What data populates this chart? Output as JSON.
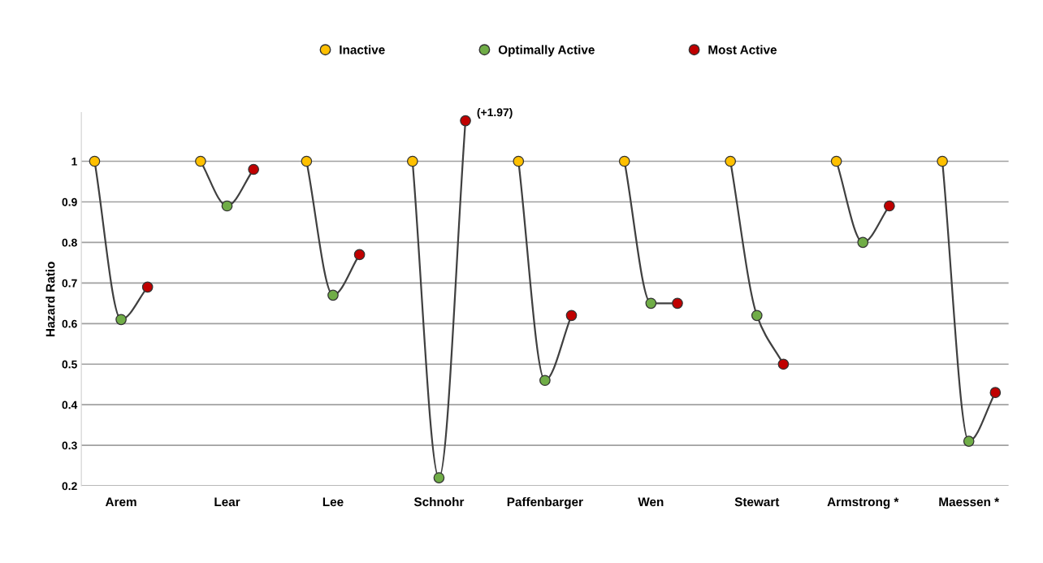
{
  "chart_data": {
    "type": "line",
    "ylabel": "Hazard Ratio",
    "categories": [
      null,
      "Arem",
      null,
      null,
      null,
      "Lear",
      null,
      null,
      null,
      "Lee",
      null,
      null,
      null,
      "Schnohr",
      null,
      null,
      null,
      "Paffenbarger",
      null,
      null,
      null,
      "Wen",
      null,
      null,
      null,
      "Stewart",
      null,
      null,
      null,
      "Armstrong *",
      null,
      null,
      null,
      "Maessen *",
      null
    ],
    "series": [
      {
        "type": "line",
        "color": "#404040",
        "marker": "none",
        "values": [
          1,
          0.61,
          0.69,
          null,
          1,
          0.89,
          0.98,
          null,
          1,
          0.67,
          0.77,
          null,
          1,
          0.22,
          1.1,
          null,
          1,
          0.46,
          0.62,
          null,
          1,
          0.65,
          0.65,
          null,
          1,
          0.62,
          0.5,
          null,
          1,
          0.8,
          0.89,
          null,
          1,
          0.31,
          0.43
        ]
      },
      {
        "type": "scatter",
        "name": "Inactive",
        "color": "#ffc000",
        "values": [
          1,
          null,
          null,
          null,
          1,
          null,
          null,
          null,
          1,
          null,
          null,
          null,
          1,
          null,
          null,
          null,
          1,
          null,
          null,
          null,
          1,
          null,
          null,
          null,
          1,
          null,
          null,
          null,
          1,
          null,
          null,
          null,
          1,
          null,
          null
        ]
      },
      {
        "type": "scatter",
        "name": "Optimally Active",
        "color": "#70ad47",
        "values": [
          null,
          0.61,
          null,
          null,
          null,
          0.89,
          null,
          null,
          null,
          0.67,
          null,
          null,
          null,
          0.22,
          null,
          null,
          null,
          0.46,
          null,
          null,
          null,
          0.65,
          null,
          null,
          null,
          0.62,
          null,
          null,
          null,
          0.8,
          null,
          null,
          null,
          0.31,
          null
        ]
      },
      {
        "type": "scatter",
        "name": "Most Active",
        "color": "#c00000",
        "values": [
          null,
          null,
          0.69,
          null,
          null,
          null,
          0.98,
          null,
          null,
          null,
          0.77,
          null,
          null,
          null,
          1.1,
          null,
          null,
          null,
          0.62,
          null,
          null,
          null,
          0.65,
          null,
          null,
          null,
          0.5,
          null,
          null,
          null,
          0.89,
          null,
          null,
          null,
          0.43
        ]
      }
    ],
    "ylim": [
      0.2,
      1.12
    ],
    "yticks": [
      0.2,
      0.3,
      0.4,
      0.5,
      0.6,
      0.7,
      0.8,
      0.9,
      1
    ],
    "grid": "y",
    "legend": "top",
    "marker": "circle",
    "annotations": [
      "(+1.97)"
    ]
  }
}
